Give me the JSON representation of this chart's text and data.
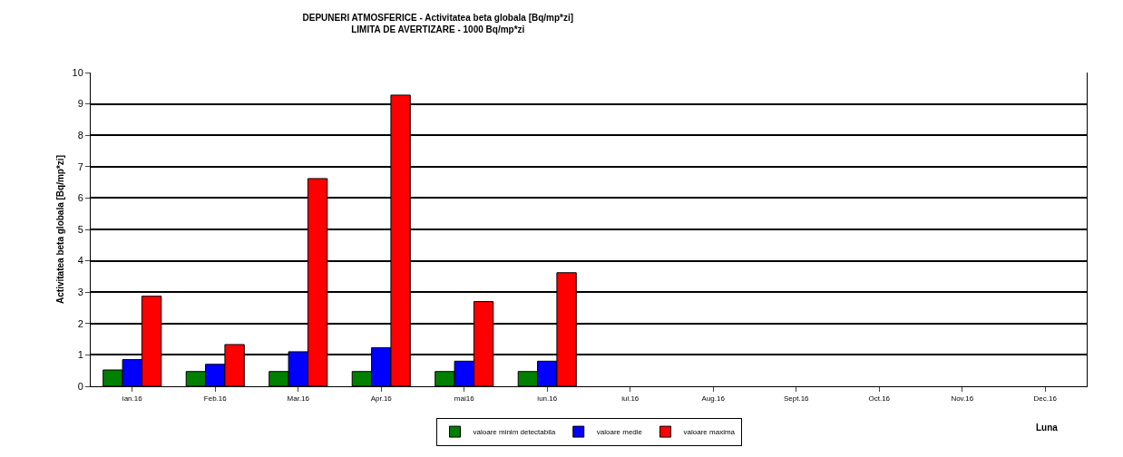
{
  "chart_data": {
    "type": "bar",
    "title": "DEPUNERI ATMOSFERICE - Activitatea beta globala [Bq/mp*zi]",
    "subtitle": "LIMITA DE AVERTIZARE - 1000 Bq/mp*zi",
    "xlabel": "Luna",
    "ylabel": "Activitatea beta globala [Bq/mp*zi]",
    "categories": [
      "ian.16",
      "Feb.16",
      "Mar.16",
      "Apr.16",
      "mai16",
      "iun.16",
      "iul.16",
      "Aug.16",
      "Sept.16",
      "Oct.16",
      "Nov.16",
      "Dec.16"
    ],
    "series": [
      {
        "name": "valoare minim detectabila",
        "color": "#008000",
        "values": [
          0.52,
          0.47,
          0.47,
          0.47,
          0.47,
          0.47,
          null,
          null,
          null,
          null,
          null,
          null
        ]
      },
      {
        "name": "valoare medie",
        "color": "#0000ff",
        "values": [
          0.85,
          0.7,
          1.1,
          1.23,
          0.8,
          0.8,
          null,
          null,
          null,
          null,
          null,
          null
        ]
      },
      {
        "name": "valoare maxima",
        "color": "#ff0000",
        "values": [
          2.87,
          1.33,
          6.62,
          9.28,
          2.7,
          3.62,
          null,
          null,
          null,
          null,
          null,
          null
        ]
      }
    ],
    "ylim": [
      0,
      10
    ],
    "yticks": [
      0,
      1,
      2,
      3,
      4,
      5,
      6,
      7,
      8,
      9,
      10
    ],
    "grid": "y",
    "legend": "bottom"
  }
}
